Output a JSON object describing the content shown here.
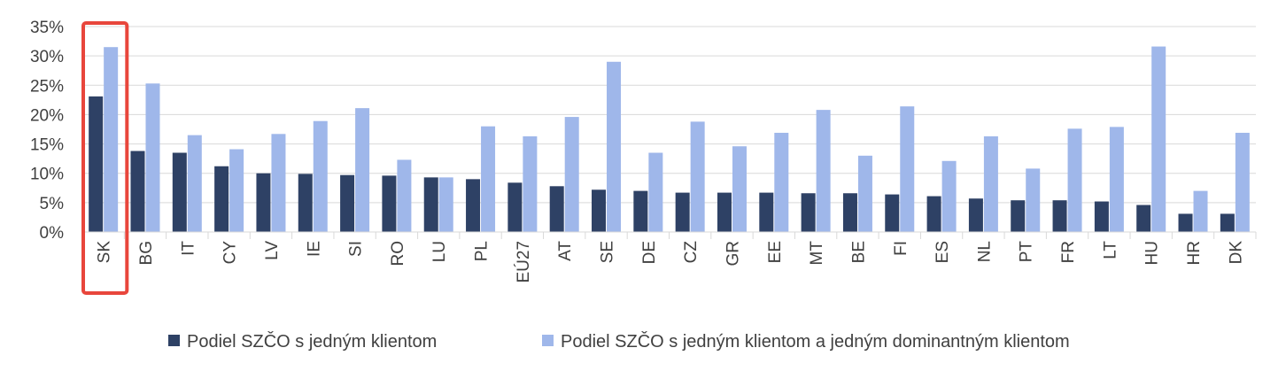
{
  "chart_data": {
    "type": "bar",
    "categories": [
      "SK",
      "BG",
      "IT",
      "CY",
      "LV",
      "IE",
      "SI",
      "RO",
      "LU",
      "PL",
      "EÚ27",
      "AT",
      "SE",
      "DE",
      "CZ",
      "GR",
      "EE",
      "MT",
      "BE",
      "FI",
      "ES",
      "NL",
      "PT",
      "FR",
      "LT",
      "HU",
      "HR",
      "DK"
    ],
    "series": [
      {
        "name": "Podiel SZČO s jedným klientom",
        "color": "#2e4165",
        "values": [
          23.1,
          13.8,
          13.5,
          11.2,
          10.0,
          9.9,
          9.7,
          9.6,
          9.3,
          9.0,
          8.4,
          7.8,
          7.2,
          7.0,
          6.7,
          6.7,
          6.7,
          6.6,
          6.6,
          6.4,
          6.1,
          5.7,
          5.4,
          5.4,
          5.2,
          4.6,
          3.1,
          3.1
        ]
      },
      {
        "name": "Podiel SZČO s jedným klientom a jedným dominantným klientom",
        "color": "#9fb7ea",
        "values": [
          31.5,
          25.3,
          16.5,
          14.1,
          16.7,
          18.9,
          21.1,
          12.3,
          9.3,
          18.0,
          16.3,
          19.6,
          29.0,
          13.5,
          18.8,
          14.6,
          16.9,
          20.8,
          13.0,
          21.4,
          12.1,
          16.3,
          10.8,
          17.6,
          17.9,
          31.6,
          7.0,
          16.9
        ]
      }
    ],
    "ylim": [
      0,
      35
    ],
    "yticks": [
      0,
      5,
      10,
      15,
      20,
      25,
      30,
      35
    ],
    "ytick_labels": [
      "0%",
      "5%",
      "10%",
      "15%",
      "20%",
      "25%",
      "30%",
      "35%"
    ],
    "title": "",
    "xlabel": "",
    "ylabel": "",
    "grid": true,
    "legend": "bottom",
    "highlight": {
      "category": "SK",
      "color": "#e8463c"
    }
  }
}
